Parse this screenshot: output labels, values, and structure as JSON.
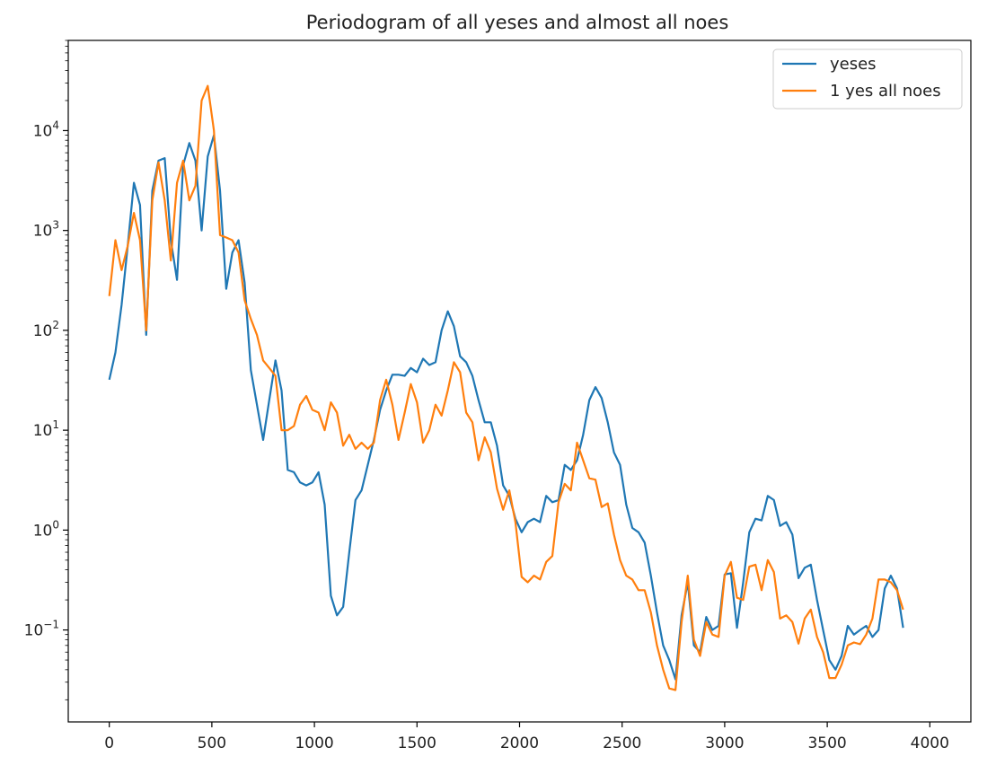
{
  "chart_data": {
    "type": "line",
    "title": "Periodogram of all yeses and almost all noes",
    "xlabel": "",
    "ylabel": "",
    "xlim": [
      -200,
      4200
    ],
    "ylim": [
      0.012,
      80000
    ],
    "yscale": "log",
    "grid": false,
    "legend_position": "top-right",
    "x_ticks": [
      0,
      500,
      1000,
      1500,
      2000,
      2500,
      3000,
      3500,
      4000
    ],
    "y_ticks": [
      {
        "value": 0.1,
        "base": "10",
        "exp": "−1"
      },
      {
        "value": 1,
        "base": "10",
        "exp": "0"
      },
      {
        "value": 10,
        "base": "10",
        "exp": "1"
      },
      {
        "value": 100,
        "base": "10",
        "exp": "2"
      },
      {
        "value": 1000,
        "base": "10",
        "exp": "3"
      },
      {
        "value": 10000,
        "base": "10",
        "exp": "4"
      }
    ],
    "series": [
      {
        "name": "yeses",
        "color": "#1f77b4",
        "points": [
          [
            0,
            32
          ],
          [
            30,
            60
          ],
          [
            60,
            180
          ],
          [
            90,
            700
          ],
          [
            120,
            3000
          ],
          [
            150,
            1800
          ],
          [
            180,
            90
          ],
          [
            210,
            2500
          ],
          [
            240,
            5000
          ],
          [
            270,
            5300
          ],
          [
            300,
            800
          ],
          [
            330,
            320
          ],
          [
            360,
            4500
          ],
          [
            390,
            7500
          ],
          [
            420,
            5000
          ],
          [
            450,
            1000
          ],
          [
            480,
            5500
          ],
          [
            510,
            9000
          ],
          [
            540,
            2500
          ],
          [
            570,
            260
          ],
          [
            600,
            600
          ],
          [
            630,
            800
          ],
          [
            660,
            300
          ],
          [
            690,
            40
          ],
          [
            750,
            8
          ],
          [
            780,
            20
          ],
          [
            810,
            50
          ],
          [
            840,
            25
          ],
          [
            870,
            4
          ],
          [
            900,
            3.8
          ],
          [
            930,
            3
          ],
          [
            960,
            2.8
          ],
          [
            990,
            3
          ],
          [
            1020,
            3.8
          ],
          [
            1050,
            1.8
          ],
          [
            1080,
            0.22
          ],
          [
            1110,
            0.14
          ],
          [
            1140,
            0.17
          ],
          [
            1170,
            0.6
          ],
          [
            1200,
            2
          ],
          [
            1230,
            2.5
          ],
          [
            1260,
            4.5
          ],
          [
            1290,
            8
          ],
          [
            1320,
            16
          ],
          [
            1350,
            25
          ],
          [
            1380,
            36
          ],
          [
            1410,
            36
          ],
          [
            1440,
            35
          ],
          [
            1470,
            42
          ],
          [
            1500,
            38
          ],
          [
            1530,
            52
          ],
          [
            1560,
            45
          ],
          [
            1590,
            48
          ],
          [
            1620,
            100
          ],
          [
            1650,
            155
          ],
          [
            1680,
            110
          ],
          [
            1710,
            55
          ],
          [
            1740,
            48
          ],
          [
            1770,
            35
          ],
          [
            1800,
            20
          ],
          [
            1830,
            12
          ],
          [
            1860,
            12
          ],
          [
            1890,
            7
          ],
          [
            1920,
            2.8
          ],
          [
            1950,
            2.2
          ],
          [
            1980,
            1.3
          ],
          [
            2010,
            0.95
          ],
          [
            2040,
            1.2
          ],
          [
            2070,
            1.3
          ],
          [
            2100,
            1.2
          ],
          [
            2130,
            2.2
          ],
          [
            2160,
            1.9
          ],
          [
            2190,
            2
          ],
          [
            2220,
            4.5
          ],
          [
            2250,
            4
          ],
          [
            2280,
            5
          ],
          [
            2310,
            9
          ],
          [
            2340,
            20
          ],
          [
            2370,
            27
          ],
          [
            2400,
            21
          ],
          [
            2430,
            12
          ],
          [
            2460,
            6
          ],
          [
            2490,
            4.5
          ],
          [
            2520,
            1.8
          ],
          [
            2550,
            1.05
          ],
          [
            2580,
            0.95
          ],
          [
            2610,
            0.75
          ],
          [
            2640,
            0.35
          ],
          [
            2670,
            0.15
          ],
          [
            2700,
            0.07
          ],
          [
            2730,
            0.05
          ],
          [
            2760,
            0.032
          ],
          [
            2790,
            0.14
          ],
          [
            2820,
            0.3
          ],
          [
            2850,
            0.07
          ],
          [
            2880,
            0.06
          ],
          [
            2910,
            0.135
          ],
          [
            2940,
            0.1
          ],
          [
            2970,
            0.11
          ],
          [
            3000,
            0.36
          ],
          [
            3030,
            0.37
          ],
          [
            3060,
            0.105
          ],
          [
            3090,
            0.3
          ],
          [
            3120,
            0.95
          ],
          [
            3150,
            1.3
          ],
          [
            3180,
            1.25
          ],
          [
            3210,
            2.2
          ],
          [
            3240,
            2
          ],
          [
            3270,
            1.1
          ],
          [
            3300,
            1.2
          ],
          [
            3330,
            0.9
          ],
          [
            3360,
            0.33
          ],
          [
            3390,
            0.42
          ],
          [
            3420,
            0.45
          ],
          [
            3450,
            0.2
          ],
          [
            3480,
            0.1
          ],
          [
            3510,
            0.05
          ],
          [
            3540,
            0.04
          ],
          [
            3570,
            0.055
          ],
          [
            3600,
            0.11
          ],
          [
            3630,
            0.09
          ],
          [
            3660,
            0.1
          ],
          [
            3690,
            0.11
          ],
          [
            3720,
            0.085
          ],
          [
            3750,
            0.1
          ],
          [
            3780,
            0.26
          ],
          [
            3810,
            0.35
          ],
          [
            3840,
            0.26
          ],
          [
            3870,
            0.105
          ]
        ]
      },
      {
        "name": "1 yes all noes",
        "color": "#ff7f0e",
        "points": [
          [
            0,
            220
          ],
          [
            30,
            800
          ],
          [
            60,
            400
          ],
          [
            90,
            700
          ],
          [
            120,
            1500
          ],
          [
            150,
            800
          ],
          [
            180,
            100
          ],
          [
            210,
            2000
          ],
          [
            240,
            4800
          ],
          [
            270,
            2000
          ],
          [
            300,
            500
          ],
          [
            330,
            3000
          ],
          [
            360,
            5000
          ],
          [
            390,
            2000
          ],
          [
            420,
            2800
          ],
          [
            450,
            20000
          ],
          [
            480,
            28000
          ],
          [
            510,
            10000
          ],
          [
            540,
            900
          ],
          [
            570,
            850
          ],
          [
            600,
            800
          ],
          [
            630,
            600
          ],
          [
            660,
            200
          ],
          [
            690,
            130
          ],
          [
            720,
            90
          ],
          [
            750,
            50
          ],
          [
            780,
            42
          ],
          [
            810,
            35
          ],
          [
            840,
            10
          ],
          [
            870,
            10
          ],
          [
            900,
            11
          ],
          [
            930,
            18
          ],
          [
            960,
            22
          ],
          [
            990,
            16
          ],
          [
            1020,
            15
          ],
          [
            1050,
            10
          ],
          [
            1080,
            19
          ],
          [
            1110,
            15
          ],
          [
            1140,
            7
          ],
          [
            1170,
            9
          ],
          [
            1200,
            6.5
          ],
          [
            1230,
            7.5
          ],
          [
            1260,
            6.5
          ],
          [
            1290,
            7.5
          ],
          [
            1320,
            20
          ],
          [
            1350,
            32
          ],
          [
            1380,
            18
          ],
          [
            1410,
            8
          ],
          [
            1440,
            15
          ],
          [
            1470,
            29
          ],
          [
            1500,
            19
          ],
          [
            1530,
            7.5
          ],
          [
            1560,
            10
          ],
          [
            1590,
            18
          ],
          [
            1620,
            14
          ],
          [
            1650,
            25
          ],
          [
            1680,
            48
          ],
          [
            1710,
            38
          ],
          [
            1740,
            15
          ],
          [
            1770,
            12
          ],
          [
            1800,
            5
          ],
          [
            1830,
            8.5
          ],
          [
            1860,
            6
          ],
          [
            1890,
            2.6
          ],
          [
            1920,
            1.6
          ],
          [
            1950,
            2.5
          ],
          [
            1980,
            1.2
          ],
          [
            2010,
            0.34
          ],
          [
            2040,
            0.3
          ],
          [
            2070,
            0.35
          ],
          [
            2100,
            0.32
          ],
          [
            2130,
            0.48
          ],
          [
            2160,
            0.55
          ],
          [
            2190,
            1.9
          ],
          [
            2220,
            2.9
          ],
          [
            2250,
            2.5
          ],
          [
            2280,
            7.5
          ],
          [
            2310,
            5
          ],
          [
            2340,
            3.3
          ],
          [
            2370,
            3.2
          ],
          [
            2400,
            1.7
          ],
          [
            2430,
            1.85
          ],
          [
            2460,
            0.9
          ],
          [
            2490,
            0.5
          ],
          [
            2520,
            0.35
          ],
          [
            2550,
            0.32
          ],
          [
            2580,
            0.25
          ],
          [
            2610,
            0.25
          ],
          [
            2640,
            0.15
          ],
          [
            2670,
            0.07
          ],
          [
            2700,
            0.04
          ],
          [
            2730,
            0.026
          ],
          [
            2760,
            0.025
          ],
          [
            2790,
            0.12
          ],
          [
            2820,
            0.35
          ],
          [
            2850,
            0.08
          ],
          [
            2880,
            0.055
          ],
          [
            2910,
            0.12
          ],
          [
            2940,
            0.09
          ],
          [
            2970,
            0.085
          ],
          [
            3000,
            0.35
          ],
          [
            3030,
            0.48
          ],
          [
            3060,
            0.21
          ],
          [
            3090,
            0.2
          ],
          [
            3120,
            0.43
          ],
          [
            3150,
            0.45
          ],
          [
            3180,
            0.25
          ],
          [
            3210,
            0.5
          ],
          [
            3240,
            0.38
          ],
          [
            3270,
            0.13
          ],
          [
            3300,
            0.14
          ],
          [
            3330,
            0.12
          ],
          [
            3360,
            0.073
          ],
          [
            3390,
            0.13
          ],
          [
            3420,
            0.16
          ],
          [
            3450,
            0.085
          ],
          [
            3480,
            0.06
          ],
          [
            3510,
            0.033
          ],
          [
            3540,
            0.033
          ],
          [
            3570,
            0.045
          ],
          [
            3600,
            0.07
          ],
          [
            3630,
            0.075
          ],
          [
            3660,
            0.072
          ],
          [
            3690,
            0.09
          ],
          [
            3720,
            0.13
          ],
          [
            3750,
            0.32
          ],
          [
            3780,
            0.32
          ],
          [
            3810,
            0.3
          ],
          [
            3840,
            0.25
          ],
          [
            3870,
            0.16
          ]
        ]
      }
    ]
  }
}
